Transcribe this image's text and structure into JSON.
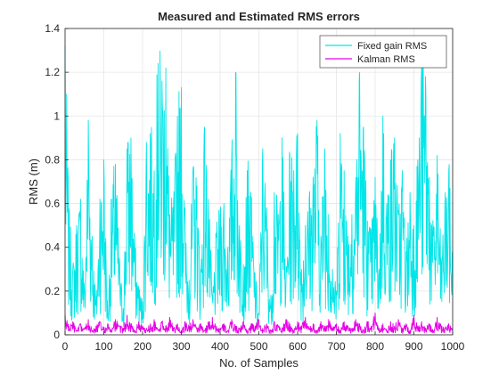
{
  "chart_data": {
    "type": "line",
    "title": "Measured and Estimated RMS errors",
    "xlabel": "No. of Samples",
    "ylabel": "RMS (m)",
    "xlim": [
      0,
      1000
    ],
    "ylim": [
      0,
      1.4
    ],
    "grid": true,
    "legend_location": "top-right",
    "x_ticks": [
      "0",
      "100",
      "200",
      "300",
      "400",
      "500",
      "600",
      "700",
      "800",
      "900",
      "1000"
    ],
    "y_ticks": [
      "0",
      "0.2",
      "0.4",
      "0.6",
      "0.8",
      "1",
      "1.2",
      "1.4"
    ],
    "n_samples": 1000,
    "series": [
      {
        "name": "Fixed gain RMS",
        "color": "#00e5e8",
        "sample_interval": 10,
        "x": [
          0,
          10,
          20,
          30,
          40,
          50,
          60,
          70,
          80,
          90,
          100,
          110,
          120,
          130,
          140,
          150,
          160,
          170,
          180,
          190,
          200,
          210,
          220,
          230,
          240,
          250,
          260,
          270,
          280,
          290,
          300,
          310,
          320,
          330,
          340,
          350,
          360,
          370,
          380,
          390,
          400,
          410,
          420,
          430,
          440,
          450,
          460,
          470,
          480,
          490,
          500,
          510,
          520,
          530,
          540,
          550,
          560,
          570,
          580,
          590,
          600,
          610,
          620,
          630,
          640,
          650,
          660,
          670,
          680,
          690,
          700,
          710,
          720,
          730,
          740,
          750,
          760,
          770,
          780,
          790,
          800,
          810,
          820,
          830,
          840,
          850,
          860,
          870,
          880,
          890,
          900,
          910,
          920,
          930,
          940,
          950,
          960,
          970,
          980,
          990,
          1000
        ],
        "values": [
          1.32,
          0.55,
          0.3,
          0.5,
          0.62,
          0.2,
          0.98,
          0.45,
          0.15,
          0.62,
          0.8,
          0.1,
          0.62,
          0.78,
          0.35,
          0.12,
          0.85,
          0.9,
          0.4,
          0.22,
          0.15,
          0.88,
          0.92,
          0.75,
          1.24,
          1.16,
          1.22,
          0.55,
          0.6,
          1.0,
          1.13,
          0.5,
          0.25,
          0.75,
          0.68,
          0.3,
          0.95,
          0.62,
          0.18,
          0.45,
          0.55,
          0.6,
          0.4,
          0.8,
          1.2,
          0.5,
          0.32,
          0.75,
          0.62,
          0.28,
          0.1,
          0.85,
          0.58,
          0.12,
          0.65,
          0.55,
          0.9,
          0.25,
          0.82,
          0.75,
          0.92,
          0.3,
          0.5,
          0.62,
          0.72,
          0.98,
          0.45,
          0.85,
          0.55,
          0.3,
          0.2,
          0.92,
          0.75,
          0.45,
          0.55,
          0.72,
          1.2,
          0.95,
          0.52,
          0.45,
          0.72,
          0.3,
          1.0,
          0.6,
          0.8,
          0.9,
          0.55,
          0.75,
          0.38,
          0.65,
          0.5,
          0.8,
          1.22,
          1.18,
          0.72,
          0.45,
          0.82,
          0.35,
          0.6,
          0.75,
          0.35
        ]
      },
      {
        "name": "Kalman RMS",
        "color": "#e600e6",
        "sample_interval": 10,
        "x": [
          0,
          10,
          20,
          30,
          40,
          50,
          60,
          70,
          80,
          90,
          100,
          110,
          120,
          130,
          140,
          150,
          160,
          170,
          180,
          190,
          200,
          210,
          220,
          230,
          240,
          250,
          260,
          270,
          280,
          290,
          300,
          310,
          320,
          330,
          340,
          350,
          360,
          370,
          380,
          390,
          400,
          410,
          420,
          430,
          440,
          450,
          460,
          470,
          480,
          490,
          500,
          510,
          520,
          530,
          540,
          550,
          560,
          570,
          580,
          590,
          600,
          610,
          620,
          630,
          640,
          650,
          660,
          670,
          680,
          690,
          700,
          710,
          720,
          730,
          740,
          750,
          760,
          770,
          780,
          790,
          800,
          810,
          820,
          830,
          840,
          850,
          860,
          870,
          880,
          890,
          900,
          910,
          920,
          930,
          940,
          950,
          960,
          970,
          980,
          990,
          1000
        ],
        "values": [
          0.09,
          0.04,
          0.06,
          0.02,
          0.05,
          0.03,
          0.07,
          0.02,
          0.04,
          0.06,
          0.03,
          0.05,
          0.02,
          0.07,
          0.04,
          0.03,
          0.09,
          0.05,
          0.02,
          0.06,
          0.04,
          0.03,
          0.05,
          0.07,
          0.02,
          0.06,
          0.04,
          0.08,
          0.03,
          0.05,
          0.02,
          0.06,
          0.04,
          0.07,
          0.03,
          0.05,
          0.02,
          0.06,
          0.08,
          0.04,
          0.03,
          0.05,
          0.02,
          0.07,
          0.04,
          0.03,
          0.06,
          0.02,
          0.05,
          0.04,
          0.07,
          0.03,
          0.05,
          0.02,
          0.06,
          0.04,
          0.03,
          0.07,
          0.05,
          0.02,
          0.06,
          0.04,
          0.08,
          0.03,
          0.05,
          0.02,
          0.06,
          0.04,
          0.07,
          0.03,
          0.05,
          0.02,
          0.06,
          0.04,
          0.03,
          0.07,
          0.05,
          0.02,
          0.06,
          0.04,
          0.1,
          0.03,
          0.05,
          0.02,
          0.06,
          0.04,
          0.07,
          0.03,
          0.05,
          0.02,
          0.09,
          0.04,
          0.06,
          0.03,
          0.05,
          0.02,
          0.08,
          0.04,
          0.03,
          0.05,
          0.02
        ]
      }
    ]
  }
}
